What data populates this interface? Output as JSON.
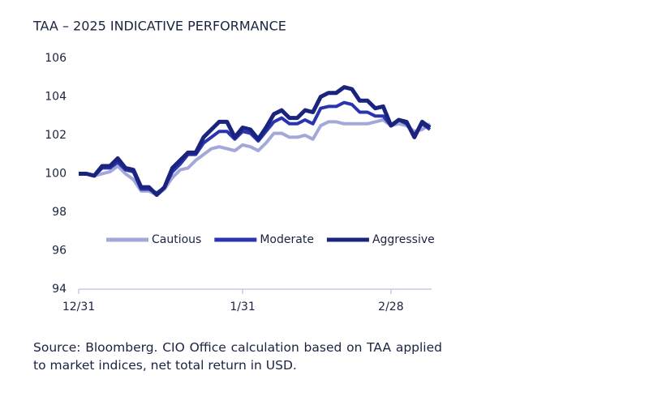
{
  "chart_data": {
    "type": "line",
    "title": "TAA – 2025 INDICATIVE PERFORMANCE",
    "categories": [
      "12/31",
      null,
      null,
      null,
      null,
      null,
      null,
      null,
      null,
      null,
      null,
      null,
      null,
      null,
      null,
      null,
      null,
      null,
      null,
      null,
      null,
      "1/31",
      null,
      null,
      null,
      null,
      null,
      null,
      null,
      null,
      null,
      null,
      null,
      null,
      null,
      null,
      null,
      null,
      null,
      null,
      "2/28",
      null,
      null,
      null,
      null,
      null
    ],
    "series": [
      {
        "name": "Cautious",
        "color": "#a3a8d8",
        "values": [
          100,
          100,
          99.9,
          100.0,
          100.1,
          100.4,
          100.0,
          99.7,
          99.1,
          99.1,
          98.9,
          99.2,
          99.8,
          100.2,
          100.3,
          100.7,
          101.0,
          101.3,
          101.4,
          101.3,
          101.2,
          101.5,
          101.4,
          101.2,
          101.6,
          102.1,
          102.1,
          101.9,
          101.9,
          102.0,
          101.8,
          102.5,
          102.7,
          102.7,
          102.6,
          102.6,
          102.6,
          102.6,
          102.7,
          102.8,
          102.5,
          102.6,
          102.5,
          102.2,
          102.3,
          102.6
        ]
      },
      {
        "name": "Moderate",
        "color": "#2a34b0",
        "values": [
          100,
          100,
          99.9,
          100.3,
          100.3,
          100.6,
          100.2,
          100.1,
          99.2,
          99.2,
          99.0,
          99.3,
          100.1,
          100.5,
          101.0,
          101.0,
          101.6,
          101.9,
          102.2,
          102.2,
          101.8,
          102.2,
          102.1,
          101.7,
          102.2,
          102.7,
          102.9,
          102.6,
          102.6,
          102.8,
          102.6,
          103.4,
          103.5,
          103.5,
          103.7,
          103.6,
          103.2,
          103.2,
          103.0,
          103.0,
          102.5,
          102.8,
          102.6,
          102.0,
          102.6,
          102.3
        ]
      },
      {
        "name": "Aggressive",
        "color": "#1a237e",
        "values": [
          100,
          100,
          99.9,
          100.4,
          100.4,
          100.8,
          100.3,
          100.2,
          99.3,
          99.3,
          98.9,
          99.3,
          100.3,
          100.7,
          101.1,
          101.1,
          101.9,
          102.3,
          102.7,
          102.7,
          101.9,
          102.4,
          102.3,
          101.8,
          102.4,
          103.1,
          103.3,
          102.9,
          102.9,
          103.3,
          103.2,
          104.0,
          104.2,
          104.2,
          104.5,
          104.4,
          103.8,
          103.8,
          103.4,
          103.5,
          102.5,
          102.8,
          102.7,
          101.9,
          102.7,
          102.4
        ]
      }
    ],
    "ylim": [
      94,
      106
    ],
    "yticks": [
      94,
      96,
      98,
      100,
      102,
      104,
      106
    ],
    "grid": false,
    "legend": "center",
    "note": "Source: Bloomberg. CIO Office calculation based on TAA applied to market indices, net total return in USD."
  }
}
